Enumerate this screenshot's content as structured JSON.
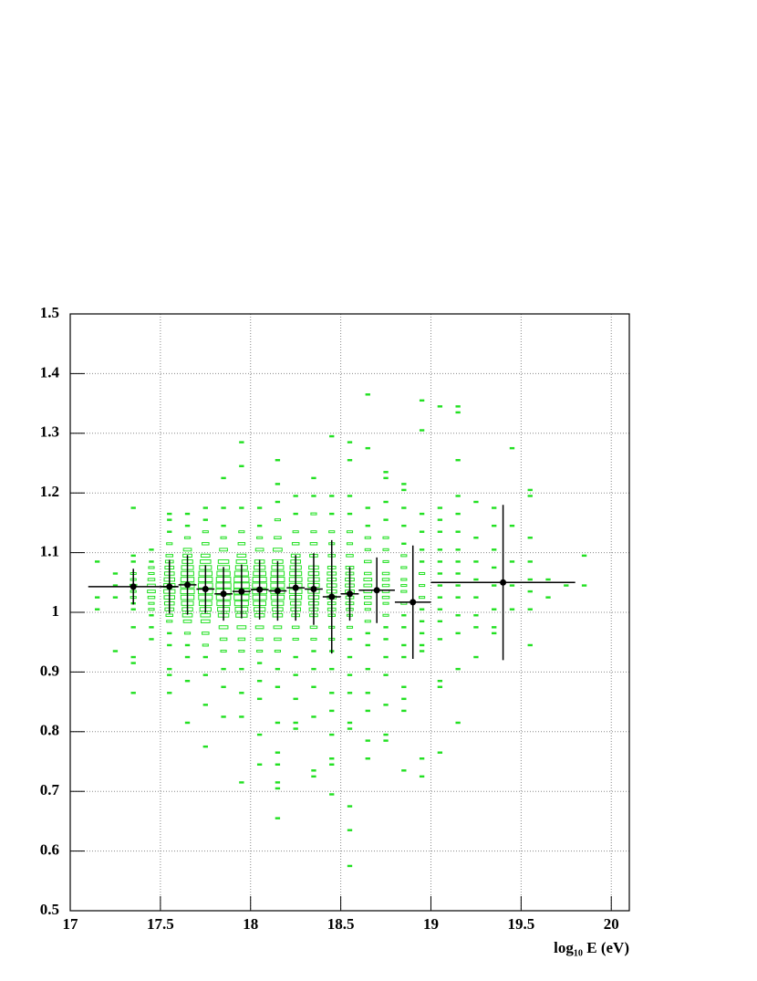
{
  "chart_data": {
    "type": "profile-box",
    "xlabel": "log₁₀ E (eV)",
    "xlim": [
      17,
      20.1
    ],
    "ylim": [
      0.5,
      1.5
    ],
    "xticks": [
      17,
      17.5,
      18,
      18.5,
      19,
      19.5,
      20
    ],
    "yticks": [
      0.5,
      0.6,
      0.7,
      0.8,
      0.9,
      1,
      1.1,
      1.2,
      1.3,
      1.4,
      1.5
    ],
    "grid": true,
    "box_color": "#22e022",
    "profile_color": "#000000",
    "cell_size": [
      0.1,
      0.01
    ],
    "boxes": [
      {
        "x": 17.15,
        "y": [
          1.085,
          1.025,
          1.005
        ],
        "n": [
          1,
          1,
          1
        ]
      },
      {
        "x": 17.25,
        "y": [
          1.065,
          1.045,
          1.025,
          0.935
        ],
        "n": [
          1,
          1,
          1,
          1
        ]
      },
      {
        "x": 17.35,
        "y": [
          1.175,
          1.095,
          1.085,
          1.065,
          1.055,
          1.045,
          1.035,
          1.025,
          1.015,
          1.005,
          0.975,
          0.925,
          0.915,
          0.865
        ],
        "n": [
          1,
          1,
          1,
          2,
          2,
          3,
          2,
          2,
          1,
          1,
          1,
          1,
          1,
          1
        ]
      },
      {
        "x": 17.45,
        "y": [
          1.105,
          1.085,
          1.075,
          1.065,
          1.055,
          1.045,
          1.035,
          1.025,
          1.015,
          1.005,
          0.995,
          0.975,
          0.955
        ],
        "n": [
          1,
          1,
          2,
          2,
          3,
          4,
          4,
          3,
          2,
          2,
          1,
          1,
          1
        ]
      },
      {
        "x": 17.55,
        "y": [
          1.165,
          1.155,
          1.135,
          1.115,
          1.095,
          1.085,
          1.075,
          1.065,
          1.055,
          1.045,
          1.035,
          1.025,
          1.015,
          1.005,
          0.995,
          0.985,
          0.965,
          0.945,
          0.905,
          0.895,
          0.865
        ],
        "n": [
          1,
          1,
          1,
          2,
          3,
          4,
          5,
          6,
          7,
          8,
          8,
          7,
          6,
          5,
          3,
          2,
          1,
          1,
          1,
          1,
          1
        ]
      },
      {
        "x": 17.65,
        "y": [
          1.165,
          1.145,
          1.125,
          1.105,
          1.095,
          1.085,
          1.075,
          1.065,
          1.055,
          1.045,
          1.035,
          1.025,
          1.015,
          1.005,
          0.995,
          0.985,
          0.965,
          0.945,
          0.925,
          0.885,
          0.815
        ],
        "n": [
          1,
          1,
          2,
          4,
          5,
          7,
          9,
          10,
          11,
          12,
          12,
          11,
          9,
          7,
          6,
          4,
          2,
          1,
          1,
          1,
          1
        ]
      },
      {
        "x": 17.75,
        "y": [
          1.175,
          1.155,
          1.135,
          1.115,
          1.095,
          1.085,
          1.075,
          1.065,
          1.055,
          1.045,
          1.035,
          1.025,
          1.015,
          1.005,
          0.995,
          0.985,
          0.965,
          0.945,
          0.925,
          0.895,
          0.845,
          0.775
        ],
        "n": [
          1,
          1,
          2,
          3,
          5,
          7,
          9,
          11,
          12,
          13,
          13,
          12,
          10,
          8,
          6,
          5,
          3,
          2,
          1,
          1,
          1,
          1
        ]
      },
      {
        "x": 17.85,
        "y": [
          1.225,
          1.175,
          1.145,
          1.125,
          1.105,
          1.085,
          1.075,
          1.065,
          1.055,
          1.045,
          1.035,
          1.025,
          1.015,
          1.005,
          0.995,
          0.975,
          0.955,
          0.935,
          0.905,
          0.875,
          0.825
        ],
        "n": [
          1,
          1,
          1,
          2,
          4,
          7,
          9,
          11,
          13,
          14,
          14,
          13,
          11,
          9,
          7,
          5,
          3,
          2,
          1,
          1,
          1
        ]
      },
      {
        "x": 17.95,
        "y": [
          1.285,
          1.245,
          1.175,
          1.135,
          1.115,
          1.095,
          1.085,
          1.075,
          1.065,
          1.055,
          1.045,
          1.035,
          1.025,
          1.015,
          1.005,
          0.995,
          0.975,
          0.955,
          0.935,
          0.905,
          0.865,
          0.825,
          0.715
        ],
        "n": [
          1,
          1,
          1,
          2,
          3,
          5,
          7,
          9,
          12,
          14,
          15,
          15,
          14,
          12,
          10,
          8,
          5,
          3,
          2,
          1,
          1,
          1,
          1
        ]
      },
      {
        "x": 18.05,
        "y": [
          1.175,
          1.145,
          1.125,
          1.105,
          1.085,
          1.075,
          1.065,
          1.055,
          1.045,
          1.035,
          1.025,
          1.015,
          1.005,
          0.995,
          0.975,
          0.955,
          0.935,
          0.915,
          0.885,
          0.855,
          0.795,
          0.745
        ],
        "n": [
          1,
          1,
          2,
          4,
          6,
          8,
          10,
          12,
          13,
          13,
          12,
          10,
          8,
          6,
          4,
          3,
          2,
          1,
          1,
          1,
          1,
          1
        ]
      },
      {
        "x": 18.15,
        "y": [
          1.255,
          1.215,
          1.185,
          1.155,
          1.125,
          1.105,
          1.085,
          1.075,
          1.065,
          1.055,
          1.045,
          1.035,
          1.025,
          1.015,
          1.005,
          0.995,
          0.975,
          0.955,
          0.935,
          0.905,
          0.875,
          0.815,
          0.765,
          0.745,
          0.715,
          0.705,
          0.655
        ],
        "n": [
          1,
          1,
          1,
          2,
          3,
          5,
          7,
          9,
          11,
          12,
          12,
          12,
          11,
          9,
          7,
          6,
          4,
          3,
          2,
          1,
          1,
          1,
          1,
          1,
          1,
          1,
          1
        ]
      },
      {
        "x": 18.25,
        "y": [
          1.195,
          1.165,
          1.135,
          1.115,
          1.095,
          1.085,
          1.075,
          1.065,
          1.055,
          1.045,
          1.035,
          1.025,
          1.015,
          1.005,
          0.995,
          0.975,
          0.955,
          0.925,
          0.895,
          0.855,
          0.815,
          0.805
        ],
        "n": [
          1,
          1,
          2,
          3,
          5,
          6,
          8,
          9,
          10,
          10,
          10,
          9,
          7,
          6,
          4,
          3,
          2,
          1,
          1,
          1,
          1,
          1
        ]
      },
      {
        "x": 18.35,
        "y": [
          1.225,
          1.195,
          1.165,
          1.135,
          1.115,
          1.095,
          1.075,
          1.065,
          1.055,
          1.045,
          1.035,
          1.025,
          1.015,
          1.005,
          0.995,
          0.975,
          0.955,
          0.935,
          0.905,
          0.875,
          0.825,
          0.735,
          0.725
        ],
        "n": [
          1,
          1,
          2,
          2,
          3,
          4,
          6,
          7,
          8,
          8,
          8,
          7,
          6,
          5,
          4,
          3,
          2,
          1,
          1,
          1,
          1,
          1,
          1
        ]
      },
      {
        "x": 18.45,
        "y": [
          1.295,
          1.195,
          1.165,
          1.135,
          1.115,
          1.095,
          1.075,
          1.065,
          1.055,
          1.045,
          1.035,
          1.025,
          1.015,
          1.005,
          0.995,
          0.975,
          0.955,
          0.935,
          0.905,
          0.865,
          0.835,
          0.795,
          0.755,
          0.745,
          0.695
        ],
        "n": [
          1,
          1,
          1,
          2,
          2,
          3,
          4,
          5,
          5,
          6,
          6,
          5,
          4,
          4,
          3,
          2,
          2,
          1,
          1,
          1,
          1,
          1,
          1,
          1,
          1
        ]
      },
      {
        "x": 18.55,
        "y": [
          1.285,
          1.255,
          1.195,
          1.165,
          1.135,
          1.115,
          1.095,
          1.075,
          1.065,
          1.055,
          1.045,
          1.035,
          1.025,
          1.015,
          1.005,
          0.995,
          0.975,
          0.955,
          0.925,
          0.895,
          0.865,
          0.815,
          0.805,
          0.675,
          0.635,
          0.575
        ],
        "n": [
          1,
          1,
          1,
          1,
          2,
          2,
          3,
          4,
          4,
          5,
          5,
          5,
          4,
          4,
          3,
          2,
          2,
          1,
          1,
          1,
          1,
          1,
          1,
          1,
          1,
          1
        ]
      },
      {
        "x": 18.65,
        "y": [
          1.365,
          1.275,
          1.175,
          1.145,
          1.125,
          1.105,
          1.085,
          1.065,
          1.055,
          1.045,
          1.035,
          1.025,
          1.015,
          1.005,
          0.985,
          0.965,
          0.945,
          0.905,
          0.865,
          0.835,
          0.785,
          0.755
        ],
        "n": [
          1,
          1,
          1,
          1,
          2,
          2,
          3,
          3,
          4,
          4,
          4,
          3,
          3,
          2,
          2,
          1,
          1,
          1,
          1,
          1,
          1,
          1
        ]
      },
      {
        "x": 18.75,
        "y": [
          1.235,
          1.225,
          1.185,
          1.155,
          1.125,
          1.105,
          1.085,
          1.065,
          1.055,
          1.045,
          1.035,
          1.025,
          1.015,
          0.995,
          0.975,
          0.955,
          0.925,
          0.895,
          0.845,
          0.795,
          0.785
        ],
        "n": [
          1,
          1,
          1,
          1,
          2,
          2,
          2,
          3,
          3,
          3,
          3,
          3,
          2,
          2,
          1,
          1,
          1,
          1,
          1,
          1,
          1
        ]
      },
      {
        "x": 18.85,
        "y": [
          1.215,
          1.205,
          1.175,
          1.145,
          1.115,
          1.095,
          1.075,
          1.055,
          1.045,
          1.035,
          1.015,
          0.995,
          0.975,
          0.945,
          0.925,
          0.875,
          0.855,
          0.835,
          0.735
        ],
        "n": [
          1,
          1,
          1,
          1,
          1,
          2,
          2,
          2,
          2,
          2,
          2,
          1,
          1,
          1,
          1,
          1,
          1,
          1,
          1
        ]
      },
      {
        "x": 18.95,
        "y": [
          1.355,
          1.305,
          1.165,
          1.135,
          1.105,
          1.085,
          1.065,
          1.045,
          1.025,
          1.005,
          0.985,
          0.965,
          0.945,
          0.935,
          0.755,
          0.725
        ],
        "n": [
          1,
          1,
          1,
          1,
          1,
          1,
          2,
          2,
          2,
          1,
          1,
          1,
          1,
          1,
          1,
          1
        ]
      },
      {
        "x": 19.05,
        "y": [
          1.345,
          1.175,
          1.155,
          1.135,
          1.105,
          1.085,
          1.065,
          1.045,
          1.025,
          1.005,
          0.985,
          0.955,
          0.885,
          0.875,
          0.765
        ],
        "n": [
          1,
          1,
          1,
          1,
          1,
          1,
          1,
          1,
          1,
          1,
          1,
          1,
          1,
          1,
          1
        ]
      },
      {
        "x": 19.15,
        "y": [
          1.345,
          1.335,
          1.255,
          1.195,
          1.165,
          1.135,
          1.105,
          1.085,
          1.065,
          1.045,
          1.025,
          0.995,
          0.965,
          0.905,
          0.815
        ],
        "n": [
          1,
          1,
          1,
          1,
          1,
          1,
          1,
          1,
          1,
          1,
          1,
          1,
          1,
          1,
          1
        ]
      },
      {
        "x": 19.25,
        "y": [
          1.185,
          1.125,
          1.085,
          1.055,
          1.025,
          0.995,
          0.975,
          0.925
        ],
        "n": [
          1,
          1,
          1,
          1,
          1,
          1,
          1,
          1
        ]
      },
      {
        "x": 19.35,
        "y": [
          1.175,
          1.145,
          1.105,
          1.075,
          1.045,
          1.005,
          0.975,
          0.965
        ],
        "n": [
          1,
          1,
          1,
          1,
          1,
          1,
          1,
          1
        ]
      },
      {
        "x": 19.45,
        "y": [
          1.275,
          1.145,
          1.085,
          1.045,
          1.005
        ],
        "n": [
          1,
          1,
          1,
          1,
          1
        ]
      },
      {
        "x": 19.55,
        "y": [
          1.205,
          1.195,
          1.125,
          1.085,
          1.055,
          1.035,
          1.005,
          0.945
        ],
        "n": [
          1,
          1,
          1,
          1,
          1,
          1,
          1,
          1
        ]
      },
      {
        "x": 19.65,
        "y": [
          1.055,
          1.025
        ],
        "n": [
          1,
          1
        ]
      },
      {
        "x": 19.75,
        "y": [
          1.045
        ],
        "n": [
          1
        ]
      },
      {
        "x": 19.85,
        "y": [
          1.095,
          1.045
        ],
        "n": [
          1,
          1
        ]
      }
    ],
    "profile": {
      "x": [
        17.35,
        17.55,
        17.65,
        17.75,
        17.85,
        17.95,
        18.05,
        18.15,
        18.25,
        18.35,
        18.45,
        18.55,
        18.7,
        18.9,
        19.4
      ],
      "xerr": [
        0.25,
        0.05,
        0.05,
        0.05,
        0.05,
        0.05,
        0.05,
        0.05,
        0.05,
        0.05,
        0.05,
        0.05,
        0.1,
        0.1,
        0.4
      ],
      "y": [
        1.043,
        1.043,
        1.046,
        1.039,
        1.031,
        1.035,
        1.038,
        1.036,
        1.041,
        1.039,
        1.026,
        1.031,
        1.037,
        1.017,
        1.05
      ],
      "yerr": [
        0.03,
        0.045,
        0.05,
        0.04,
        0.045,
        0.045,
        0.05,
        0.05,
        0.055,
        0.06,
        0.095,
        0.045,
        0.055,
        0.095,
        0.13
      ]
    }
  }
}
